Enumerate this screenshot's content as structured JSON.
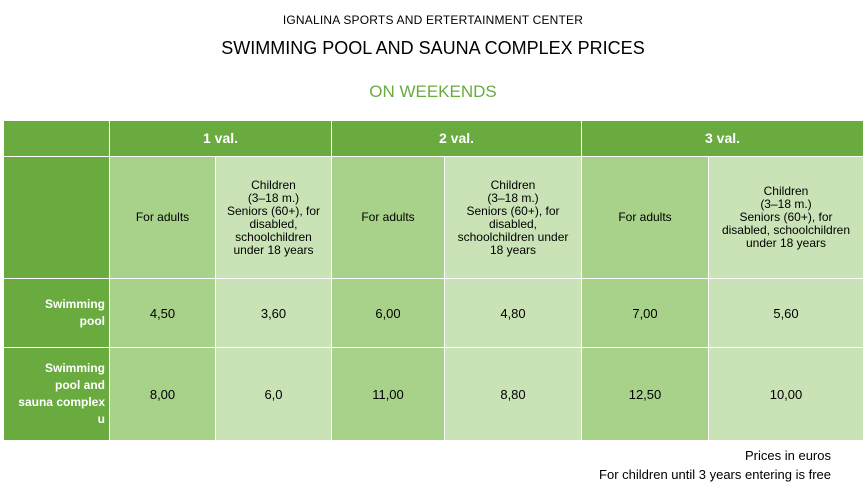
{
  "header": {
    "organization": "IGNALINA SPORTS AND ERTERTAINMENT CENTER",
    "title": "SWIMMING POOL AND SAUNA COMPLEX PRICES",
    "subtitle": "ON WEEKENDS"
  },
  "table": {
    "durations": [
      "1 val.",
      "2 val.",
      "3 val."
    ],
    "columns": {
      "adults": "For adults",
      "children_short": "Children\n(3–18 m.)\nSeniors (60+), for\ndisabled,\nschoolchildren\nunder 18 years",
      "children_mid": "Children\n(3–18 m.)\nSeniors (60+), for\ndisabled,\nschoolchildren under\n18 years",
      "children_wide": "Children\n(3–18 m.)\nSeniors (60+), for\ndisabled, schoolchildren\nunder 18 years"
    },
    "rows": [
      {
        "label": "Swimming\npool",
        "values": [
          "4,50",
          "3,60",
          "6,00",
          "4,80",
          "7,00",
          "5,60"
        ]
      },
      {
        "label": "Swimming\npool and\nsauna complex\nu",
        "values": [
          "8,00",
          "6,0",
          "11,00",
          "8,80",
          "12,50",
          "10,00"
        ]
      }
    ]
  },
  "notes": {
    "currency": "Prices in euros",
    "children_free": "For children until 3 years entering is free"
  },
  "colors": {
    "dark_green": "#6aab3f",
    "mid_green": "#a8d18a",
    "light_green": "#c9e3b6"
  }
}
